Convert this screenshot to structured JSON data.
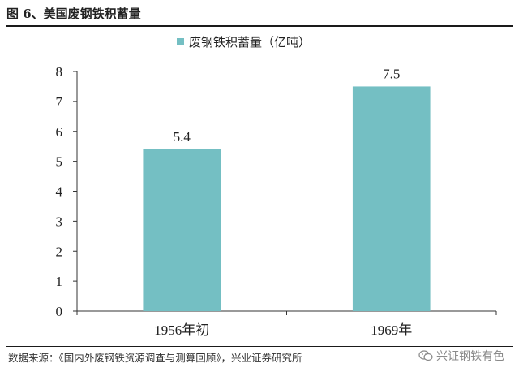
{
  "figure": {
    "title": "图 6、美国废钢铁积蓄量",
    "source": "数据来源：《国内外废钢铁资源调查与测算回顾》，兴业证券研究所",
    "watermark": "兴证钢铁有色"
  },
  "chart_data": {
    "type": "bar",
    "categories": [
      "1956年初",
      "1969年"
    ],
    "series": [
      {
        "name": "废钢铁积蓄量（亿吨）",
        "values": [
          5.4,
          7.5
        ],
        "color": "#74BFC3"
      }
    ],
    "data_labels": [
      "5.4",
      "7.5"
    ],
    "y_ticks": [
      0,
      1,
      2,
      3,
      4,
      5,
      6,
      7,
      8
    ],
    "ylim": [
      0,
      8
    ],
    "legend": "top-center",
    "grid": false
  },
  "colors": {
    "bar": "#74BFC3",
    "axis": "#333333",
    "text": "#222222"
  }
}
